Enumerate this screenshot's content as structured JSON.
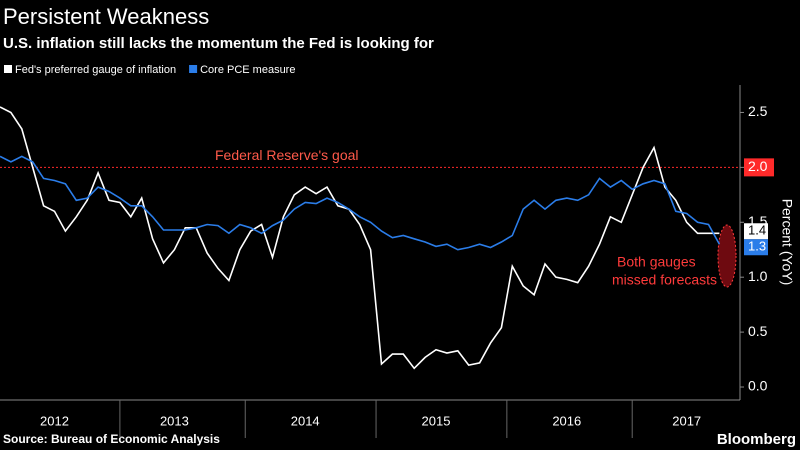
{
  "chart_data": {
    "type": "line",
    "title": "Persistent Weakness",
    "subtitle": "U.S. inflation still lacks the momentum the Fed is looking for",
    "y_axis_label": "Percent (YoY)",
    "source": "Source: Bureau of Economic Analysis",
    "brand": "Bloomberg",
    "categories": [
      null,
      null,
      null,
      null,
      null,
      "2012",
      null,
      null,
      null,
      null,
      null,
      null,
      null,
      null,
      null,
      null,
      "2013",
      null,
      null,
      null,
      null,
      null,
      null,
      null,
      null,
      null,
      null,
      null,
      "2014",
      null,
      null,
      null,
      null,
      null,
      null,
      null,
      null,
      null,
      null,
      null,
      "2015",
      null,
      null,
      null,
      null,
      null,
      null,
      null,
      null,
      null,
      null,
      null,
      "2016",
      null,
      null,
      null,
      null,
      null,
      null,
      null,
      null,
      null,
      null,
      "2017",
      null,
      null,
      null
    ],
    "series": [
      {
        "name": "Fed's preferred gauge of inflation",
        "color": "#ffffff",
        "values": [
          2.55,
          2.5,
          2.35,
          2.0,
          1.65,
          1.6,
          1.42,
          1.55,
          1.7,
          1.95,
          1.7,
          1.68,
          1.55,
          1.72,
          1.35,
          1.13,
          1.25,
          1.45,
          1.45,
          1.22,
          1.08,
          0.97,
          1.25,
          1.42,
          1.48,
          1.18,
          1.55,
          1.75,
          1.82,
          1.76,
          1.82,
          1.65,
          1.62,
          1.48,
          1.25,
          0.21,
          0.3,
          0.3,
          0.17,
          0.27,
          0.34,
          0.31,
          0.33,
          0.2,
          0.22,
          0.4,
          0.54,
          1.1,
          0.92,
          0.84,
          1.12,
          1.0,
          0.98,
          0.95,
          1.1,
          1.3,
          1.55,
          1.5,
          1.75,
          2.0,
          2.18,
          1.82,
          1.7,
          1.5,
          1.4,
          1.4,
          1.4
        ],
        "value_labels": [
          null,
          null,
          null,
          null,
          null,
          null,
          null,
          null,
          null,
          null,
          null,
          null,
          null,
          null,
          null,
          null,
          null,
          null,
          null,
          null,
          null,
          null,
          null,
          null,
          null,
          null,
          null,
          null,
          null,
          null,
          null,
          null,
          null,
          null,
          null,
          null,
          null,
          null,
          null,
          null,
          null,
          null,
          null,
          null,
          null,
          null,
          null,
          null,
          null,
          null,
          null,
          null,
          null,
          null,
          null,
          null,
          null,
          null,
          null,
          null,
          null,
          null,
          null,
          null,
          null,
          null,
          "1.4"
        ]
      },
      {
        "name": "Core PCE measure",
        "color": "#2b7de9",
        "values": [
          2.1,
          2.05,
          2.1,
          2.05,
          1.9,
          1.88,
          1.85,
          1.7,
          1.72,
          1.82,
          1.78,
          1.72,
          1.65,
          1.65,
          1.55,
          1.43,
          1.43,
          1.43,
          1.45,
          1.48,
          1.47,
          1.4,
          1.48,
          1.45,
          1.4,
          1.47,
          1.52,
          1.62,
          1.68,
          1.67,
          1.72,
          1.68,
          1.62,
          1.55,
          1.5,
          1.42,
          1.36,
          1.38,
          1.35,
          1.32,
          1.28,
          1.3,
          1.25,
          1.27,
          1.3,
          1.27,
          1.32,
          1.38,
          1.62,
          1.7,
          1.62,
          1.7,
          1.72,
          1.7,
          1.75,
          1.9,
          1.82,
          1.88,
          1.8,
          1.85,
          1.88,
          1.85,
          1.6,
          1.58,
          1.5,
          1.48,
          1.3
        ],
        "value_labels": [
          null,
          null,
          null,
          null,
          null,
          null,
          null,
          null,
          null,
          null,
          null,
          null,
          null,
          null,
          null,
          null,
          null,
          null,
          null,
          null,
          null,
          null,
          null,
          null,
          null,
          null,
          null,
          null,
          null,
          null,
          null,
          null,
          null,
          null,
          null,
          null,
          null,
          null,
          null,
          null,
          null,
          null,
          null,
          null,
          null,
          null,
          null,
          null,
          null,
          null,
          null,
          null,
          null,
          null,
          null,
          null,
          null,
          null,
          null,
          null,
          null,
          null,
          null,
          null,
          null,
          null,
          "1.3"
        ]
      }
    ],
    "ylim": [
      -0.1,
      2.75
    ],
    "yticks": [
      {
        "value": 0,
        "label": "0.0"
      },
      {
        "value": 0.5,
        "label": "0.5"
      },
      {
        "value": 1,
        "label": "1.0"
      },
      {
        "value": 1.5,
        "label": "1.5"
      },
      {
        "value": 2,
        "label": "2.0"
      },
      {
        "value": 2.5,
        "label": "2.5"
      }
    ],
    "goal": {
      "text": "Federal Reserve's goal",
      "value": 2,
      "color": "#ff2a2a"
    },
    "note": {
      "lines": [
        "Both gauges",
        "missed forecasts"
      ],
      "color": "#ff3b3b"
    },
    "legend": "top-left",
    "grid": false
  }
}
